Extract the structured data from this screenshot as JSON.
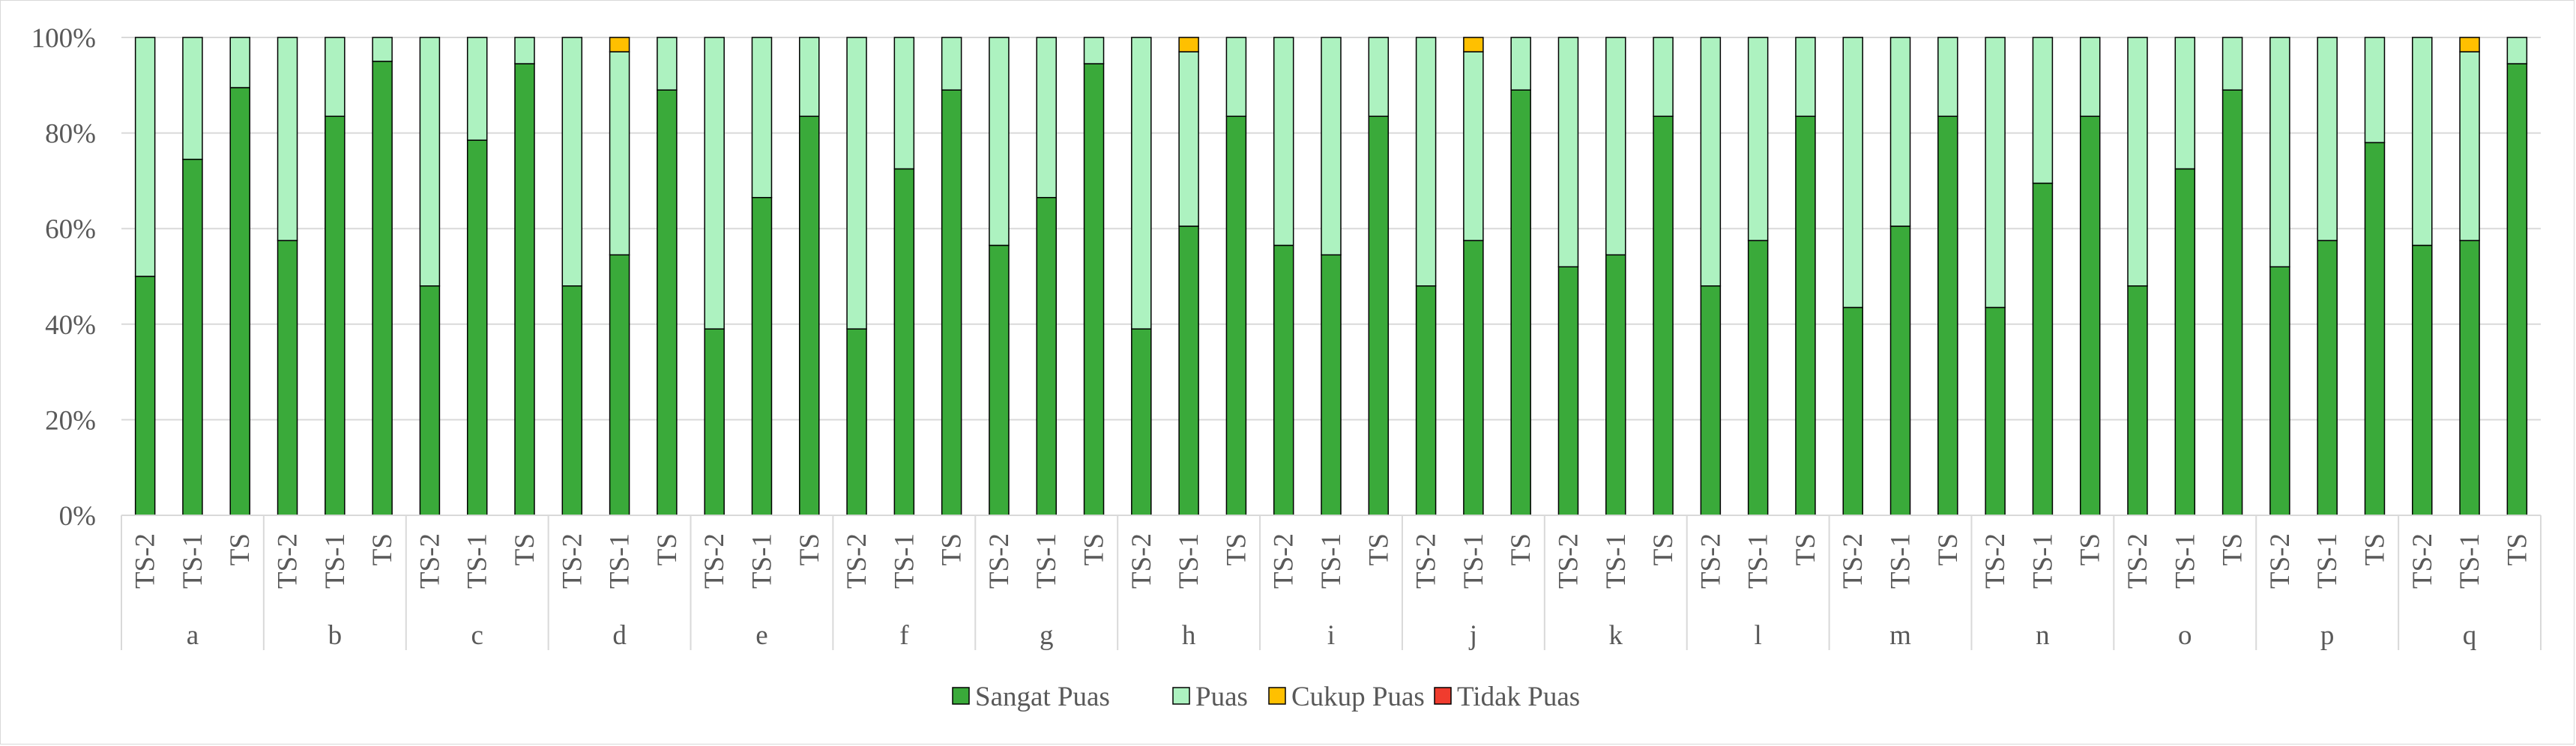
{
  "chart_data": {
    "type": "bar",
    "stacked": true,
    "percent_axis": true,
    "groups": [
      "a",
      "b",
      "c",
      "d",
      "e",
      "f",
      "g",
      "h",
      "i",
      "j",
      "k",
      "l",
      "m",
      "n",
      "o",
      "p",
      "q"
    ],
    "sub_categories": [
      "TS-2",
      "TS-1",
      "TS"
    ],
    "yticks": [
      "0%",
      "20%",
      "40%",
      "60%",
      "80%",
      "100%"
    ],
    "ylim": [
      0,
      100
    ],
    "grid": true,
    "legend_position": "bottom",
    "series": [
      {
        "name": "Sangat Puas",
        "color": "#3aaa3a",
        "values": [
          50,
          74.5,
          89.5,
          57.5,
          83.5,
          95,
          48,
          78.5,
          94.5,
          48,
          54.5,
          89,
          39,
          66.5,
          83.5,
          39,
          72.5,
          89,
          56.5,
          66.5,
          94.5,
          39,
          60.5,
          83.5,
          56.5,
          54.5,
          83.5,
          48,
          57.5,
          89,
          52,
          54.5,
          83.5,
          48,
          57.5,
          83.5,
          43.5,
          60.5,
          83.5,
          43.5,
          69.5,
          83.5,
          48,
          72.5,
          89,
          52,
          57.5,
          78,
          56.5,
          57.5,
          94.5
        ]
      },
      {
        "name": "Puas",
        "color": "#adf2c0",
        "values": [
          50,
          25.5,
          10.5,
          42.5,
          16.5,
          5,
          52,
          21.5,
          5.5,
          52,
          42.5,
          11,
          61,
          33.5,
          16.5,
          61,
          27.5,
          11,
          43.5,
          33.5,
          5.5,
          61,
          36.5,
          16.5,
          43.5,
          45.5,
          16.5,
          52,
          39.5,
          11,
          48,
          45.5,
          16.5,
          52,
          42.5,
          16.5,
          56.5,
          39.5,
          16.5,
          56.5,
          30.5,
          16.5,
          52,
          27.5,
          11,
          48,
          42.5,
          22,
          43.5,
          39.5,
          5.5
        ]
      },
      {
        "name": "Cukup Puas",
        "color": "#ffc000",
        "values": [
          0,
          0,
          0,
          0,
          0,
          0,
          0,
          0,
          0,
          0,
          3,
          0,
          0,
          0,
          0,
          0,
          0,
          0,
          0,
          0,
          0,
          0,
          3,
          0,
          0,
          0,
          0,
          0,
          3,
          0,
          0,
          0,
          0,
          0,
          0,
          0,
          0,
          0,
          0,
          0,
          0,
          0,
          0,
          0,
          0,
          0,
          0,
          0,
          0,
          3,
          0
        ]
      },
      {
        "name": "Tidak Puas",
        "color": "#f03c2e",
        "values": [
          0,
          0,
          0,
          0,
          0,
          0,
          0,
          0,
          0,
          0,
          0,
          0,
          0,
          0,
          0,
          0,
          0,
          0,
          0,
          0,
          0,
          0,
          0,
          0,
          0,
          0,
          0,
          0,
          0,
          0,
          0,
          0,
          0,
          0,
          0,
          0,
          0,
          0,
          0,
          0,
          0,
          0,
          0,
          0,
          0,
          0,
          0,
          0,
          0,
          0,
          0
        ]
      }
    ]
  }
}
